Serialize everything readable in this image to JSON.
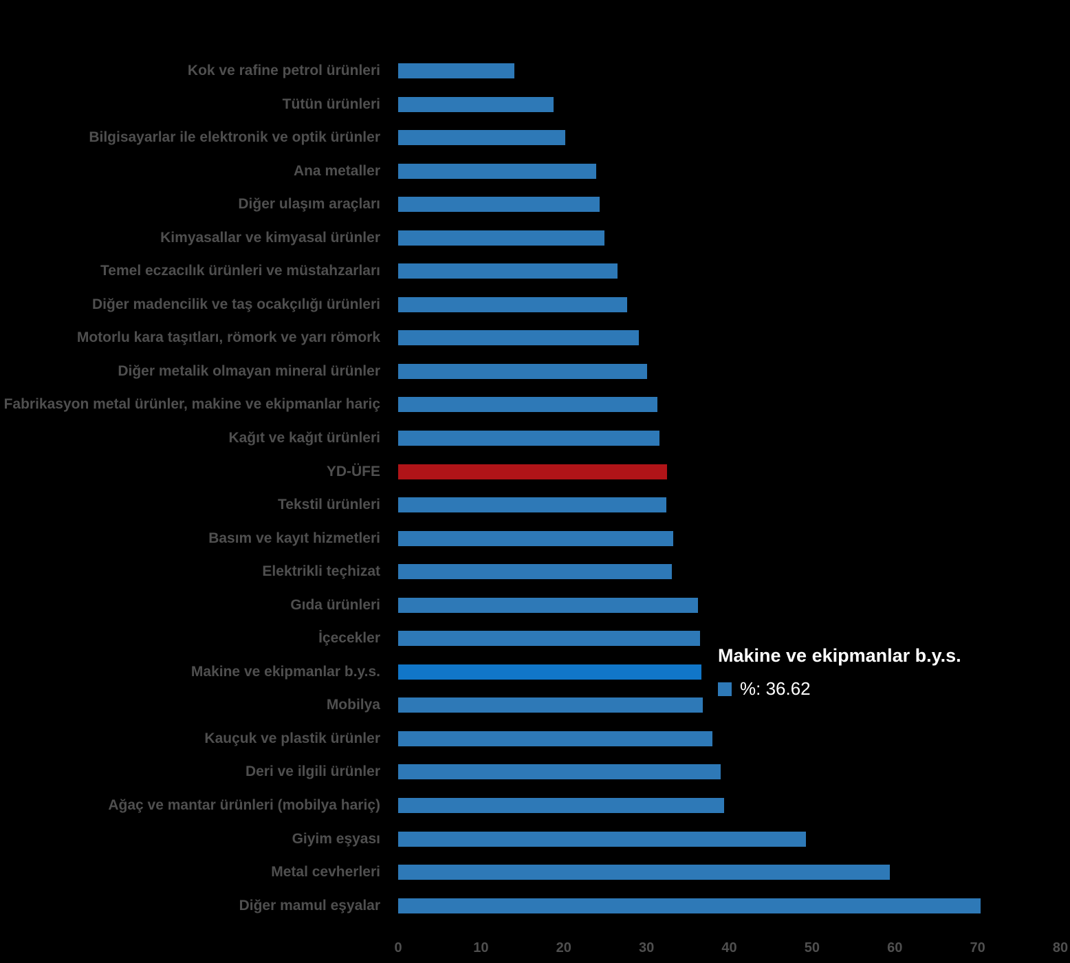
{
  "chart_data": {
    "type": "bar",
    "orientation": "horizontal",
    "title": "",
    "xlabel": "",
    "ylabel": "",
    "xlim": [
      0,
      80
    ],
    "x_ticks": [
      0,
      10,
      20,
      30,
      40,
      50,
      60,
      70,
      80
    ],
    "grid": false,
    "legend": false,
    "categories": [
      "Kok ve rafine petrol ürünleri",
      "Tütün ürünleri",
      "Bilgisayarlar ile elektronik ve optik ürünler",
      "Ana metaller",
      "Diğer ulaşım araçları",
      "Kimyasallar ve kimyasal ürünler",
      "Temel eczacılık ürünleri ve müstahzarları",
      "Diğer madencilik ve taş ocakçılığı ürünleri",
      "Motorlu kara taşıtları, römork ve yarı römork",
      "Diğer metalik olmayan mineral ürünler",
      "Fabrikasyon metal ürünler, makine ve ekipmanlar hariç",
      "Kağıt ve kağıt ürünleri",
      "YD-ÜFE",
      "Tekstil ürünleri",
      "Basım ve kayıt hizmetleri",
      "Elektrikli teçhizat",
      "Gıda ürünleri",
      "İçecekler",
      "Makine ve ekipmanlar b.y.s.",
      "Mobilya",
      "Kauçuk ve plastik ürünler",
      "Deri ve ilgili ürünler",
      "Ağaç ve mantar ürünleri (mobilya hariç)",
      "Giyim eşyası",
      "Metal cevherleri",
      "Diğer mamul eşyalar"
    ],
    "values": [
      14.0,
      18.8,
      20.2,
      23.9,
      24.3,
      24.9,
      26.5,
      27.7,
      29.1,
      30.1,
      31.3,
      31.6,
      32.5,
      32.4,
      33.2,
      33.1,
      36.2,
      36.5,
      36.62,
      36.8,
      38.0,
      39.0,
      39.4,
      49.3,
      59.4,
      70.4
    ],
    "highlighted_category": "YD-ÜFE",
    "hovered_category": "Makine ve ekipmanlar b.y.s.",
    "hovered_value": 36.62
  },
  "tooltip": {
    "title": "Makine ve ekipmanlar b.y.s.",
    "value_label": "%: 36.62"
  },
  "colors": {
    "background": "#000000",
    "bar": "#2E79B7",
    "bar_hover": "#1176C8",
    "bar_highlight": "#B01418",
    "label_text": "#4F4F4F",
    "tooltip_text": "#FFFFFF"
  }
}
